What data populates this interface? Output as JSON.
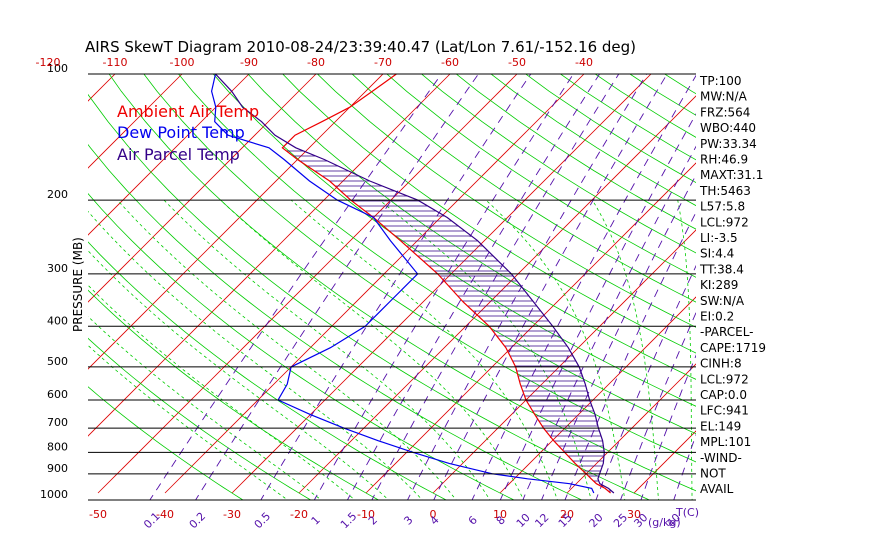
{
  "chart_data": {
    "type": "line",
    "title": "AIRS SkewT Diagram 2010-08-24/23:39:40.47 (Lat/Lon 7.61/-152.16 deg)",
    "ylabel": "PRESSURE (MB)",
    "xlabel": "T(C)",
    "y_scale": "log",
    "ylim": [
      1000,
      100
    ],
    "pressure_ticks": [
      100,
      200,
      300,
      400,
      500,
      600,
      700,
      800,
      900,
      1000
    ],
    "bottom_temp_ticks": [
      -50,
      -40,
      -30,
      -20,
      -10,
      0,
      10,
      20,
      30
    ],
    "top_temp_ticks": [
      -120,
      -110,
      -100,
      -90,
      -80,
      -70,
      -60,
      -50,
      -40
    ],
    "mixing_ratio_label": "(g/kg)",
    "mixing_ratio_ticks": [
      "0.1",
      "0.2",
      "0.5",
      "1",
      "1.5",
      "2",
      "3",
      "4",
      "6",
      "8",
      "10",
      "12",
      "15",
      "20",
      "25",
      "30",
      "40"
    ],
    "legend": [
      "Ambient Air Temp",
      "Dew Point Temp",
      "Air Parcel Temp"
    ],
    "colors": {
      "ambient": "#ee0000",
      "dewpoint": "#0000ee",
      "parcel": "#330088",
      "isotherm": "#dd0000",
      "dry_adiabat": "#00cc00",
      "moist_adiabat": "#00cc00",
      "mixing_ratio": "#5511aa",
      "isobar": "#000000"
    },
    "series": [
      {
        "name": "Ambient Air Temp",
        "p": [
          1000,
          975,
          950,
          925,
          900,
          850,
          800,
          750,
          700,
          650,
          600,
          550,
          500,
          450,
          400,
          350,
          300,
          250,
          220,
          200,
          180,
          160,
          150,
          140,
          130,
          120,
          110,
          100
        ],
        "value": [
          26.5,
          25,
          23,
          21.5,
          20,
          16.8,
          13.6,
          10.2,
          6.8,
          3.5,
          0,
          -3.2,
          -6.5,
          -10.8,
          -16.5,
          -24,
          -32,
          -42.5,
          -50,
          -56,
          -62,
          -70,
          -74,
          -74,
          -72,
          -70,
          -69,
          -68
        ]
      },
      {
        "name": "Dew Point Temp",
        "p": [
          1000,
          975,
          950,
          925,
          900,
          850,
          800,
          750,
          700,
          650,
          600,
          550,
          500,
          450,
          400,
          350,
          300,
          250,
          220,
          200,
          180,
          160,
          150,
          140,
          130,
          120,
          110,
          100
        ],
        "value": [
          24,
          23,
          19,
          12,
          6,
          -2,
          -9,
          -16,
          -23,
          -30,
          -37,
          -38,
          -40,
          -37,
          -35,
          -35,
          -35,
          -44,
          -50,
          -58,
          -65,
          -72,
          -76,
          -84,
          -88,
          -90,
          -93,
          -95
        ]
      },
      {
        "name": "Air Parcel Temp",
        "p": [
          1000,
          975,
          950,
          925,
          900,
          850,
          800,
          750,
          700,
          650,
          600,
          550,
          500,
          450,
          400,
          350,
          300,
          250,
          220,
          200,
          180,
          160,
          150,
          140,
          130,
          120,
          110,
          100
        ],
        "value": [
          27,
          25.5,
          23.5,
          22.5,
          22,
          21,
          19.5,
          17.5,
          15,
          12.5,
          9.5,
          6.5,
          3,
          -1.5,
          -7,
          -13.5,
          -21,
          -31,
          -39,
          -46,
          -56,
          -66,
          -72,
          -77,
          -81,
          -86,
          -90,
          -95
        ]
      }
    ]
  },
  "stats": [
    "TP:100",
    "MW:N/A",
    "FRZ:564",
    "WBO:440",
    "PW:33.34",
    "RH:46.9",
    "MAXT:31.1",
    "TH:5463",
    "L57:5.8",
    "LCL:972",
    "LI:-3.5",
    "SI:4.4",
    "TT:38.4",
    "KI:289",
    "SW:N/A",
    "EI:0.2",
    "-PARCEL-",
    "CAPE:1719",
    "CINH:8",
    "LCL:972",
    "CAP:0.0",
    "LFC:941",
    "EL:149",
    "MPL:101",
    "-WIND-",
    "NOT",
    "AVAIL"
  ]
}
